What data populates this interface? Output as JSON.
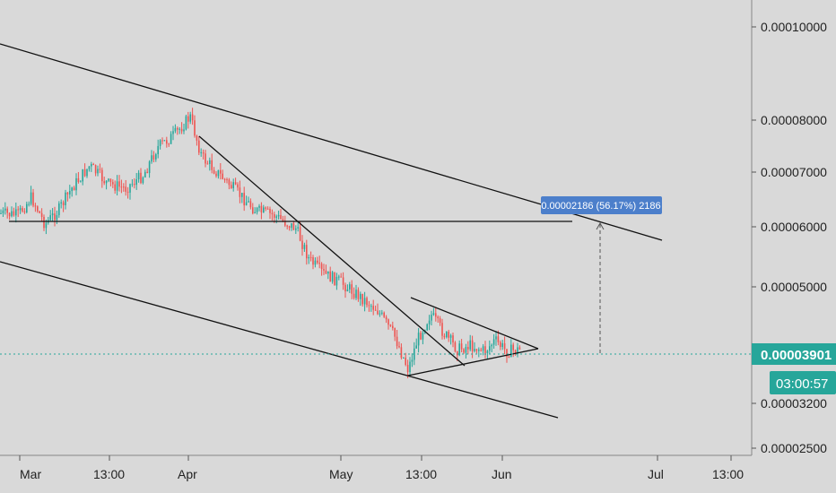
{
  "chart_data": {
    "type": "candlestick",
    "y_scale": "log",
    "grid": false,
    "x_ticks": [
      "Mar",
      "13:00",
      "Apr",
      "May",
      "13:00",
      "Jun",
      "Jul",
      "13:00"
    ],
    "y_ticks": [
      "0.00010000",
      "0.00008000",
      "0.00007000",
      "0.00006000",
      "0.00005000",
      "0.00003200",
      "0.00002500"
    ],
    "last_price": "0.00003901",
    "countdown": "03:00:57",
    "measure_label": "0.00002186 (56.17%) 2186",
    "colors": {
      "background": "#d9d9d9",
      "up": "#26a69a",
      "down": "#ef5350",
      "price_line": "#26a69a",
      "price_badge": "#26a69a",
      "measure_badge": "#4c7fcb",
      "drawing": "#111111"
    }
  }
}
